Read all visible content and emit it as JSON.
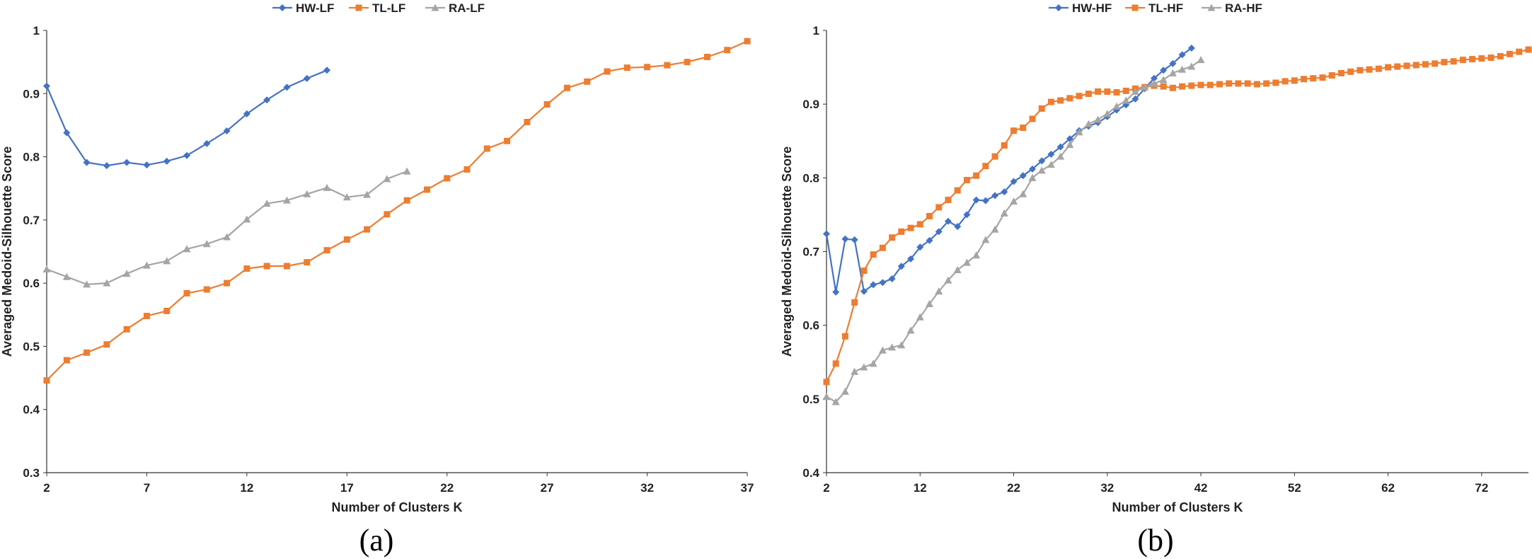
{
  "chart_data": [
    {
      "type": "line",
      "caption": "(a)",
      "xlabel": "Number of Clusters K",
      "ylabel": "Averaged Medoid-Silhouette Score",
      "xlim": [
        2,
        37
      ],
      "ylim": [
        0.3,
        1.0
      ],
      "xticks": [
        2,
        7,
        12,
        17,
        22,
        27,
        32,
        37
      ],
      "yticks": [
        0.3,
        0.4,
        0.5,
        0.6,
        0.7,
        0.8,
        0.9,
        1
      ],
      "legend_position": "top",
      "series": [
        {
          "name": "HW-LF",
          "color": "#4472C4",
          "marker": "diamond",
          "x": [
            2,
            3,
            4,
            5,
            6,
            7,
            8,
            9,
            10,
            11,
            12,
            13,
            14,
            15,
            16
          ],
          "y": [
            0.912,
            0.838,
            0.791,
            0.786,
            0.791,
            0.787,
            0.793,
            0.802,
            0.821,
            0.841,
            0.868,
            0.89,
            0.91,
            0.924,
            0.937
          ]
        },
        {
          "name": "TL-LF",
          "color": "#ED7D31",
          "marker": "square",
          "x": [
            2,
            3,
            4,
            5,
            6,
            7,
            8,
            9,
            10,
            11,
            12,
            13,
            14,
            15,
            16,
            17,
            18,
            19,
            20,
            21,
            22,
            23,
            24,
            25,
            26,
            27,
            28,
            29,
            30,
            31,
            32,
            33,
            34,
            35,
            36,
            37
          ],
          "y": [
            0.446,
            0.478,
            0.49,
            0.503,
            0.527,
            0.548,
            0.556,
            0.584,
            0.59,
            0.6,
            0.623,
            0.627,
            0.627,
            0.633,
            0.652,
            0.669,
            0.685,
            0.709,
            0.731,
            0.748,
            0.766,
            0.78,
            0.813,
            0.825,
            0.855,
            0.883,
            0.909,
            0.919,
            0.935,
            0.941,
            0.942,
            0.945,
            0.95,
            0.958,
            0.969,
            0.983
          ]
        },
        {
          "name": "RA-LF",
          "color": "#A5A5A5",
          "marker": "triangle",
          "x": [
            2,
            3,
            4,
            5,
            6,
            7,
            8,
            9,
            10,
            11,
            12,
            13,
            14,
            15,
            16,
            17,
            18,
            19,
            20
          ],
          "y": [
            0.622,
            0.61,
            0.598,
            0.6,
            0.615,
            0.628,
            0.635,
            0.654,
            0.662,
            0.673,
            0.701,
            0.726,
            0.731,
            0.741,
            0.751,
            0.736,
            0.74,
            0.765,
            0.777
          ]
        }
      ]
    },
    {
      "type": "line",
      "caption": "(b)",
      "xlabel": "Number of Clusters K",
      "ylabel": "Averaged Medoid-Silhouette Score",
      "xlim": [
        2,
        77
      ],
      "ylim": [
        0.4,
        1.0
      ],
      "xticks": [
        2,
        12,
        22,
        32,
        42,
        52,
        62,
        72
      ],
      "yticks": [
        0.4,
        0.5,
        0.6,
        0.7,
        0.8,
        0.9,
        1
      ],
      "legend_position": "top",
      "series": [
        {
          "name": "HW-HF",
          "color": "#4472C4",
          "marker": "diamond",
          "x": [
            2,
            3,
            4,
            5,
            6,
            7,
            8,
            9,
            10,
            11,
            12,
            13,
            14,
            15,
            16,
            17,
            18,
            19,
            20,
            21,
            22,
            23,
            24,
            25,
            26,
            27,
            28,
            29,
            30,
            31,
            32,
            33,
            34,
            35,
            36,
            37,
            38,
            39,
            40,
            41
          ],
          "y": [
            0.724,
            0.645,
            0.717,
            0.716,
            0.646,
            0.655,
            0.658,
            0.663,
            0.68,
            0.69,
            0.706,
            0.715,
            0.727,
            0.741,
            0.734,
            0.75,
            0.77,
            0.769,
            0.776,
            0.781,
            0.795,
            0.803,
            0.812,
            0.823,
            0.832,
            0.842,
            0.853,
            0.864,
            0.87,
            0.875,
            0.883,
            0.892,
            0.899,
            0.907,
            0.921,
            0.935,
            0.946,
            0.955,
            0.967,
            0.976
          ]
        },
        {
          "name": "TL-HF",
          "color": "#ED7D31",
          "marker": "square",
          "x": [
            2,
            3,
            4,
            5,
            6,
            7,
            8,
            9,
            10,
            11,
            12,
            13,
            14,
            15,
            16,
            17,
            18,
            19,
            20,
            21,
            22,
            23,
            24,
            25,
            26,
            27,
            28,
            29,
            30,
            31,
            32,
            33,
            34,
            35,
            36,
            37,
            38,
            39,
            40,
            41,
            42,
            43,
            44,
            45,
            46,
            47,
            48,
            49,
            50,
            51,
            52,
            53,
            54,
            55,
            56,
            57,
            58,
            59,
            60,
            61,
            62,
            63,
            64,
            65,
            66,
            67,
            68,
            69,
            70,
            71,
            72,
            73,
            74,
            75,
            76,
            77
          ],
          "y": [
            0.523,
            0.548,
            0.585,
            0.631,
            0.674,
            0.696,
            0.705,
            0.719,
            0.727,
            0.732,
            0.737,
            0.748,
            0.76,
            0.77,
            0.783,
            0.797,
            0.803,
            0.816,
            0.829,
            0.844,
            0.864,
            0.868,
            0.88,
            0.894,
            0.903,
            0.905,
            0.908,
            0.911,
            0.914,
            0.917,
            0.917,
            0.916,
            0.918,
            0.921,
            0.923,
            0.925,
            0.924,
            0.922,
            0.924,
            0.925,
            0.926,
            0.926,
            0.927,
            0.928,
            0.928,
            0.928,
            0.927,
            0.928,
            0.929,
            0.931,
            0.932,
            0.934,
            0.935,
            0.936,
            0.939,
            0.942,
            0.944,
            0.946,
            0.947,
            0.948,
            0.95,
            0.951,
            0.952,
            0.953,
            0.954,
            0.955,
            0.957,
            0.958,
            0.96,
            0.961,
            0.962,
            0.963,
            0.965,
            0.968,
            0.971,
            0.974
          ]
        },
        {
          "name": "RA-HF",
          "color": "#A5A5A5",
          "marker": "triangle",
          "x": [
            2,
            3,
            4,
            5,
            6,
            7,
            8,
            9,
            10,
            11,
            12,
            13,
            14,
            15,
            16,
            17,
            18,
            19,
            20,
            21,
            22,
            23,
            24,
            25,
            26,
            27,
            28,
            29,
            30,
            31,
            32,
            33,
            34,
            35,
            36,
            37,
            38,
            39,
            40,
            41,
            42
          ],
          "y": [
            0.503,
            0.496,
            0.51,
            0.537,
            0.543,
            0.548,
            0.566,
            0.57,
            0.573,
            0.593,
            0.611,
            0.629,
            0.646,
            0.661,
            0.675,
            0.685,
            0.695,
            0.716,
            0.73,
            0.752,
            0.768,
            0.778,
            0.8,
            0.81,
            0.818,
            0.829,
            0.845,
            0.862,
            0.873,
            0.879,
            0.887,
            0.897,
            0.905,
            0.917,
            0.923,
            0.928,
            0.933,
            0.942,
            0.947,
            0.951,
            0.96
          ]
        }
      ]
    }
  ]
}
